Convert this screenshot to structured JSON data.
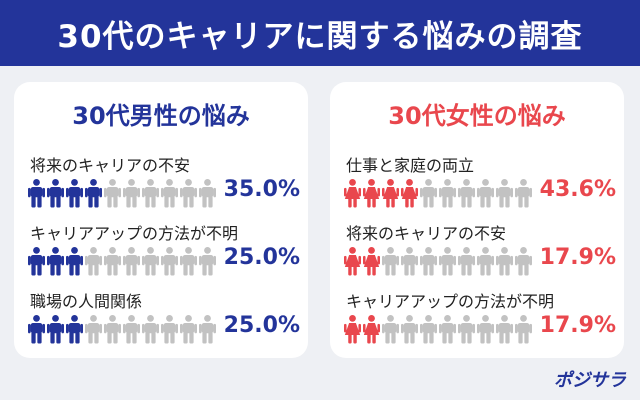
{
  "title": "30代のキャリアに関する悩みの調査",
  "colors": {
    "header": "#23349a",
    "male": "#23349a",
    "female": "#e9474d",
    "inactive": "#c2c2c2"
  },
  "icon": "person-icon",
  "logo": "ポジサラ",
  "chart_data": [
    {
      "type": "table",
      "title": "30代男性の悩み",
      "categories": [
        "将来のキャリアの不安",
        "キャリアアップの方法が不明",
        "職場の人間関係"
      ],
      "values": [
        35.0,
        25.0,
        25.0
      ],
      "value_labels": [
        "35.0%",
        "25.0%",
        "25.0%"
      ],
      "icons_total": 10,
      "icons_filled": [
        4,
        3,
        3
      ]
    },
    {
      "type": "table",
      "title": "30代女性の悩み",
      "categories": [
        "仕事と家庭の両立",
        "将来のキャリアの不安",
        "キャリアアップの方法が不明"
      ],
      "values": [
        43.6,
        17.9,
        17.9
      ],
      "value_labels": [
        "43.6%",
        "17.9%",
        "17.9%"
      ],
      "icons_total": 10,
      "icons_filled": [
        4,
        2,
        2
      ]
    }
  ]
}
